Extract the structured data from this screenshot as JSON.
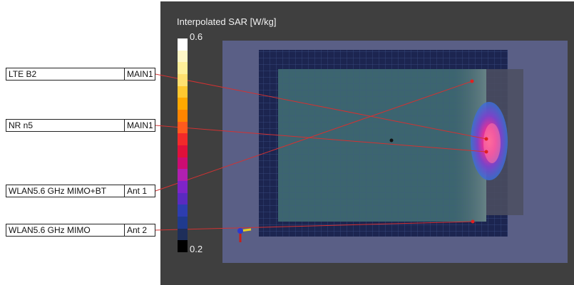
{
  "colorbar": {
    "title": "Interpolated SAR [W/kg]",
    "max_label": "0.6",
    "min_label": "0.2",
    "colors": [
      "#ffffff",
      "#fff7c8",
      "#fff09a",
      "#ffe070",
      "#ffc830",
      "#ffa800",
      "#ff8500",
      "#ff5a1e",
      "#f22a2a",
      "#e0103a",
      "#cc0c72",
      "#b020b0",
      "#7e24c8",
      "#5a2ac0",
      "#2d3db0",
      "#1f3a8e",
      "#1e2e5a",
      "#000000"
    ]
  },
  "labels": [
    {
      "band": "LTE B2",
      "antenna": "MAIN1"
    },
    {
      "band": "NR n5",
      "antenna": "MAIN1"
    },
    {
      "band": "WLAN5.6 GHz MIMO+BT",
      "antenna": "Ant 1"
    },
    {
      "band": "WLAN5.6 GHz MIMO",
      "antenna": "Ant 2"
    }
  ]
}
